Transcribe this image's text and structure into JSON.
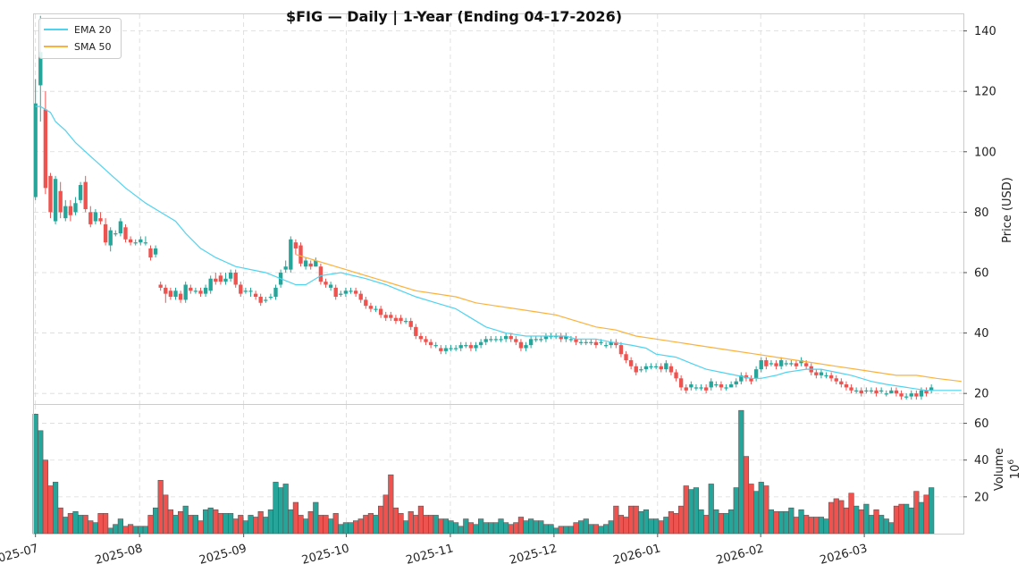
{
  "chart_data": {
    "type": "candlestick",
    "title": "$FIG  —  Daily  |  1-Year (Ending 04-17-2026)",
    "colors": {
      "up": "#26a69a",
      "down": "#ef5350",
      "ema": "#4fd3ef",
      "sma": "#fbb23c",
      "grid": "#d9d9d9",
      "frame": "#cccccc",
      "text": "#222222"
    },
    "price_panel": {
      "ylabel": "Price (USD)",
      "ylim": [
        16.5,
        145.5
      ],
      "yticks": [
        20,
        40,
        60,
        80,
        100,
        120,
        140
      ],
      "ytick_labels": [
        "20",
        "40",
        "60",
        "80",
        "100",
        "120",
        "140"
      ]
    },
    "volume_panel": {
      "ylabel": "Volume",
      "unit_base": "10",
      "unit_exp": "6",
      "ylim": [
        0,
        70
      ],
      "yticks": [
        20,
        40,
        60
      ],
      "ytick_labels": [
        "20",
        "40",
        "60"
      ]
    },
    "x_axis": {
      "start_index": -0.3,
      "end_index": 185.4,
      "ticks": [
        {
          "index": 0,
          "label": "2025-07"
        },
        {
          "index": 20.8,
          "label": "2025-08"
        },
        {
          "index": 41.6,
          "label": "2025-09"
        },
        {
          "index": 62.1,
          "label": "2025-10"
        },
        {
          "index": 82.9,
          "label": "2025-11"
        },
        {
          "index": 103.6,
          "label": "2025-12"
        },
        {
          "index": 124.3,
          "label": "2026-01"
        },
        {
          "index": 144.9,
          "label": "2026-02"
        },
        {
          "index": 165.6,
          "label": "2026-03"
        }
      ]
    },
    "legend": [
      {
        "label": "EMA 20",
        "series": "ema"
      },
      {
        "label": "SMA 50",
        "series": "sma"
      }
    ],
    "candles": [
      [
        85,
        116,
        124,
        84,
        65
      ],
      [
        122,
        133,
        145,
        110,
        56
      ],
      [
        114,
        88,
        120,
        86,
        40
      ],
      [
        92,
        80,
        93,
        78,
        26
      ],
      [
        77,
        91,
        92,
        76,
        28
      ],
      [
        87,
        80,
        90,
        78,
        14
      ],
      [
        78,
        82,
        84,
        77,
        9
      ],
      [
        82,
        79,
        84,
        77,
        11
      ],
      [
        80,
        83,
        85,
        79,
        12
      ],
      [
        84,
        89,
        90,
        83,
        10
      ],
      [
        90,
        81,
        92,
        80,
        10
      ],
      [
        80,
        76,
        82,
        75,
        7
      ],
      [
        77,
        80,
        81,
        76,
        6
      ],
      [
        78,
        77,
        80,
        76,
        11
      ],
      [
        76,
        70,
        78,
        69,
        11
      ],
      [
        69,
        74,
        75,
        67,
        3
      ],
      [
        73,
        73,
        74,
        72,
        5
      ],
      [
        73,
        77,
        78,
        72,
        8
      ],
      [
        75,
        71,
        76,
        70,
        4
      ],
      [
        71,
        70,
        72,
        69,
        5
      ],
      [
        70,
        70,
        71,
        69,
        4
      ],
      [
        70,
        71,
        72,
        69,
        4
      ],
      [
        70,
        70,
        72,
        69,
        4
      ],
      [
        68,
        65,
        69,
        64,
        10
      ],
      [
        66,
        68,
        69,
        65,
        14
      ],
      [
        56,
        55,
        57,
        54,
        29
      ],
      [
        55,
        53,
        56,
        50,
        21
      ],
      [
        54,
        52,
        55,
        51,
        13
      ],
      [
        52,
        54,
        55,
        51,
        10
      ],
      [
        53,
        51,
        54,
        50,
        12
      ],
      [
        51,
        56,
        57,
        50,
        15
      ],
      [
        55,
        54,
        56,
        53,
        10
      ],
      [
        54,
        54,
        55,
        53,
        10
      ],
      [
        54,
        53,
        55,
        52,
        7
      ],
      [
        53,
        55,
        56,
        52,
        13
      ],
      [
        54,
        58,
        59,
        53,
        14
      ],
      [
        58,
        57,
        60,
        56,
        13
      ],
      [
        59,
        57,
        60,
        56,
        11
      ],
      [
        57,
        58,
        60,
        56,
        11
      ],
      [
        58,
        60,
        61,
        57,
        11
      ],
      [
        60,
        56,
        61,
        55,
        8
      ],
      [
        56,
        53,
        57,
        52,
        10
      ],
      [
        54,
        54,
        55,
        53,
        7
      ],
      [
        54,
        54,
        55,
        52,
        10
      ],
      [
        53,
        52,
        54,
        51,
        9
      ],
      [
        52,
        50,
        53,
        49,
        12
      ],
      [
        51,
        51,
        52,
        50,
        9
      ],
      [
        52,
        52,
        53,
        51,
        13
      ],
      [
        52,
        55,
        56,
        51,
        28
      ],
      [
        56,
        60,
        61,
        55,
        25
      ],
      [
        61,
        62,
        64,
        60,
        27
      ],
      [
        61,
        71,
        72,
        60,
        13
      ],
      [
        70,
        68,
        71,
        66,
        17
      ],
      [
        69,
        63,
        70,
        62,
        10
      ],
      [
        62,
        64,
        65,
        61,
        8
      ],
      [
        63,
        62,
        64,
        61,
        12
      ],
      [
        62,
        64,
        65,
        62,
        17
      ],
      [
        62,
        57,
        63,
        56,
        10
      ],
      [
        57,
        56,
        58,
        55,
        10
      ],
      [
        55,
        56,
        57,
        54,
        8
      ],
      [
        55,
        52,
        56,
        51,
        11
      ],
      [
        53,
        53,
        54,
        52,
        5
      ],
      [
        53,
        54,
        55,
        52,
        6
      ],
      [
        54,
        54,
        55,
        53,
        6
      ],
      [
        54,
        53,
        55,
        52,
        7
      ],
      [
        53,
        51,
        54,
        50,
        8
      ],
      [
        51,
        49,
        52,
        48,
        10
      ],
      [
        49,
        48,
        50,
        47,
        11
      ],
      [
        48,
        48,
        49,
        47,
        10
      ],
      [
        48,
        46,
        49,
        45,
        15
      ],
      [
        46,
        45,
        47,
        44,
        21
      ],
      [
        46,
        45,
        47,
        44,
        32
      ],
      [
        45,
        44,
        46,
        43,
        14
      ],
      [
        45,
        44,
        46,
        43,
        11
      ],
      [
        44,
        44,
        45,
        43,
        7
      ],
      [
        44,
        42,
        45,
        41,
        12
      ],
      [
        42,
        39,
        43,
        38,
        10
      ],
      [
        39,
        38,
        40,
        37,
        15
      ],
      [
        38,
        37,
        39,
        36,
        10
      ],
      [
        37,
        36,
        38,
        35,
        10
      ],
      [
        36,
        36,
        37,
        35,
        10
      ],
      [
        35,
        34,
        36,
        33,
        8
      ],
      [
        34,
        35,
        36,
        33,
        8
      ],
      [
        35,
        35,
        36,
        34,
        7
      ],
      [
        35,
        35,
        36,
        34,
        6
      ],
      [
        35,
        36,
        37,
        34,
        4
      ],
      [
        36,
        36,
        37,
        35,
        8
      ],
      [
        36,
        35,
        37,
        34,
        6
      ],
      [
        35,
        36,
        37,
        34,
        5
      ],
      [
        36,
        37,
        38,
        35,
        8
      ],
      [
        37,
        38,
        39,
        36,
        6
      ],
      [
        38,
        38,
        39,
        37,
        6
      ],
      [
        38,
        38,
        39,
        37,
        6
      ],
      [
        38,
        38,
        39,
        37,
        8
      ],
      [
        38,
        39,
        40,
        37,
        6
      ],
      [
        39,
        38,
        40,
        37,
        5
      ],
      [
        38,
        37,
        39,
        36,
        6
      ],
      [
        37,
        35,
        38,
        34,
        9
      ],
      [
        35,
        36,
        37,
        34,
        7
      ],
      [
        36,
        38,
        39,
        35,
        8
      ],
      [
        38,
        38,
        39,
        37,
        7
      ],
      [
        38,
        38,
        39,
        37,
        7
      ],
      [
        38,
        39,
        40,
        37,
        5
      ],
      [
        39,
        39,
        40,
        38,
        5
      ],
      [
        39,
        39,
        40,
        38,
        3
      ],
      [
        39,
        38,
        40,
        37,
        4
      ],
      [
        38,
        39,
        40,
        37,
        4
      ],
      [
        38,
        38,
        39,
        37,
        4
      ],
      [
        38,
        37,
        39,
        36,
        6
      ],
      [
        37,
        37,
        38,
        36,
        7
      ],
      [
        37,
        37,
        38,
        36,
        8
      ],
      [
        37,
        37,
        38,
        36,
        5
      ],
      [
        37,
        36,
        38,
        35,
        5
      ],
      [
        37,
        37,
        38,
        36,
        4
      ],
      [
        36,
        36,
        37,
        35,
        5
      ],
      [
        36,
        37,
        38,
        35,
        7
      ],
      [
        37,
        36,
        38,
        35,
        15
      ],
      [
        36,
        33,
        37,
        32,
        10
      ],
      [
        33,
        31,
        34,
        30,
        9
      ],
      [
        31,
        29,
        32,
        28,
        15
      ],
      [
        29,
        27,
        30,
        26,
        15
      ],
      [
        28,
        28,
        29,
        27,
        12
      ],
      [
        28,
        29,
        30,
        27,
        13
      ],
      [
        29,
        29,
        30,
        28,
        8
      ],
      [
        29,
        29,
        30,
        28,
        8
      ],
      [
        29,
        28,
        30,
        27,
        7
      ],
      [
        28,
        30,
        31,
        27,
        9
      ],
      [
        29,
        27,
        30,
        26,
        12
      ],
      [
        27,
        25,
        28,
        24,
        11
      ],
      [
        25,
        22,
        26,
        21,
        15
      ],
      [
        22,
        21,
        23,
        20,
        26
      ],
      [
        22,
        23,
        24,
        21,
        24
      ],
      [
        22,
        22,
        23,
        21,
        25
      ],
      [
        22,
        22,
        23,
        21,
        13
      ],
      [
        22,
        21,
        23,
        20,
        10
      ],
      [
        22,
        24,
        25,
        21,
        27
      ],
      [
        23,
        23,
        24,
        22,
        13
      ],
      [
        23,
        22,
        24,
        21,
        11
      ],
      [
        22,
        22,
        23,
        21,
        11
      ],
      [
        22,
        23,
        24,
        22,
        13
      ],
      [
        23,
        24,
        25,
        22,
        25
      ],
      [
        24,
        26,
        27,
        23,
        67
      ],
      [
        26,
        25,
        27,
        24,
        42
      ],
      [
        25,
        24,
        26,
        23,
        27
      ],
      [
        25,
        28,
        29,
        24,
        23
      ],
      [
        28,
        31,
        32,
        27,
        28
      ],
      [
        31,
        29,
        32,
        28,
        26
      ],
      [
        30,
        30,
        31,
        29,
        13
      ],
      [
        30,
        29,
        31,
        28,
        12
      ],
      [
        29,
        31,
        32,
        28,
        12
      ],
      [
        30,
        30,
        31,
        29,
        12
      ],
      [
        30,
        30,
        31,
        29,
        14
      ],
      [
        30,
        29,
        31,
        28,
        9
      ],
      [
        30,
        31,
        32,
        29,
        13
      ],
      [
        30,
        29,
        31,
        28,
        10
      ],
      [
        29,
        27,
        30,
        26,
        9
      ],
      [
        27,
        26,
        28,
        25,
        9
      ],
      [
        26,
        27,
        28,
        25,
        9
      ],
      [
        26,
        26,
        27,
        25,
        8
      ],
      [
        26,
        25,
        27,
        24,
        17
      ],
      [
        25,
        24,
        26,
        23,
        19
      ],
      [
        24,
        23,
        25,
        22,
        18
      ],
      [
        23,
        22,
        24,
        21,
        14
      ],
      [
        22,
        21,
        23,
        20,
        22
      ],
      [
        21,
        21,
        22,
        20,
        15
      ],
      [
        21,
        20,
        22,
        19,
        13
      ],
      [
        21,
        21,
        22,
        20,
        16
      ],
      [
        21,
        21,
        22,
        20,
        10
      ],
      [
        21,
        20,
        22,
        19,
        13
      ],
      [
        21,
        21,
        22,
        20,
        10
      ],
      [
        20,
        20,
        21,
        19,
        8
      ],
      [
        20,
        21,
        22,
        20,
        6
      ],
      [
        21,
        20,
        22,
        19,
        15
      ],
      [
        20,
        19,
        21,
        18,
        16
      ],
      [
        19,
        19,
        20,
        18,
        16
      ],
      [
        19,
        20,
        21,
        18,
        14
      ],
      [
        20,
        19,
        21,
        18,
        23
      ],
      [
        19,
        21,
        22,
        18,
        17
      ],
      [
        21,
        20,
        22,
        19,
        21
      ],
      [
        21,
        22,
        23,
        20,
        25
      ]
    ],
    "ema20": [
      [
        0,
        115
      ],
      [
        1,
        115
      ],
      [
        3,
        113
      ],
      [
        4,
        110
      ],
      [
        6,
        107
      ],
      [
        8,
        103
      ],
      [
        10,
        100
      ],
      [
        12,
        97
      ],
      [
        14,
        94
      ],
      [
        16,
        91
      ],
      [
        18,
        88
      ],
      [
        22,
        83
      ],
      [
        24,
        81
      ],
      [
        28,
        77
      ],
      [
        30,
        73
      ],
      [
        33,
        68
      ],
      [
        36,
        65
      ],
      [
        40,
        62
      ],
      [
        46,
        60
      ],
      [
        52,
        56
      ],
      [
        54,
        56
      ],
      [
        57,
        59
      ],
      [
        61,
        60
      ],
      [
        66,
        58
      ],
      [
        70,
        56
      ],
      [
        73,
        54
      ],
      [
        76,
        52
      ],
      [
        80,
        50
      ],
      [
        84,
        48
      ],
      [
        87,
        45
      ],
      [
        90,
        42
      ],
      [
        94,
        40
      ],
      [
        98,
        39
      ],
      [
        102,
        39
      ],
      [
        106,
        39
      ],
      [
        108,
        38
      ],
      [
        112,
        38
      ],
      [
        115,
        37
      ],
      [
        119,
        36
      ],
      [
        122,
        35
      ],
      [
        124,
        33
      ],
      [
        128,
        32
      ],
      [
        131,
        30
      ],
      [
        134,
        28
      ],
      [
        137,
        27
      ],
      [
        140,
        26
      ],
      [
        143,
        25
      ],
      [
        145,
        25
      ],
      [
        148,
        26
      ],
      [
        150,
        27
      ],
      [
        154,
        28
      ],
      [
        157,
        28
      ],
      [
        160,
        27
      ],
      [
        163,
        26
      ],
      [
        167,
        24
      ],
      [
        170,
        23
      ],
      [
        174,
        22
      ],
      [
        178,
        21
      ],
      [
        185,
        21
      ]
    ],
    "sma50": [
      [
        52,
        66
      ],
      [
        56,
        64
      ],
      [
        60,
        62
      ],
      [
        64,
        60
      ],
      [
        68,
        58
      ],
      [
        72,
        56
      ],
      [
        76,
        54
      ],
      [
        80,
        53
      ],
      [
        84,
        52
      ],
      [
        88,
        50
      ],
      [
        92,
        49
      ],
      [
        96,
        48
      ],
      [
        100,
        47
      ],
      [
        104,
        46
      ],
      [
        108,
        44
      ],
      [
        112,
        42
      ],
      [
        116,
        41
      ],
      [
        120,
        39
      ],
      [
        124,
        38
      ],
      [
        128,
        37
      ],
      [
        132,
        36
      ],
      [
        136,
        35
      ],
      [
        140,
        34
      ],
      [
        144,
        33
      ],
      [
        148,
        32
      ],
      [
        152,
        31
      ],
      [
        156,
        30
      ],
      [
        160,
        29
      ],
      [
        164,
        28
      ],
      [
        168,
        27
      ],
      [
        172,
        26
      ],
      [
        176,
        26
      ],
      [
        180,
        25
      ],
      [
        185,
        24
      ]
    ]
  }
}
